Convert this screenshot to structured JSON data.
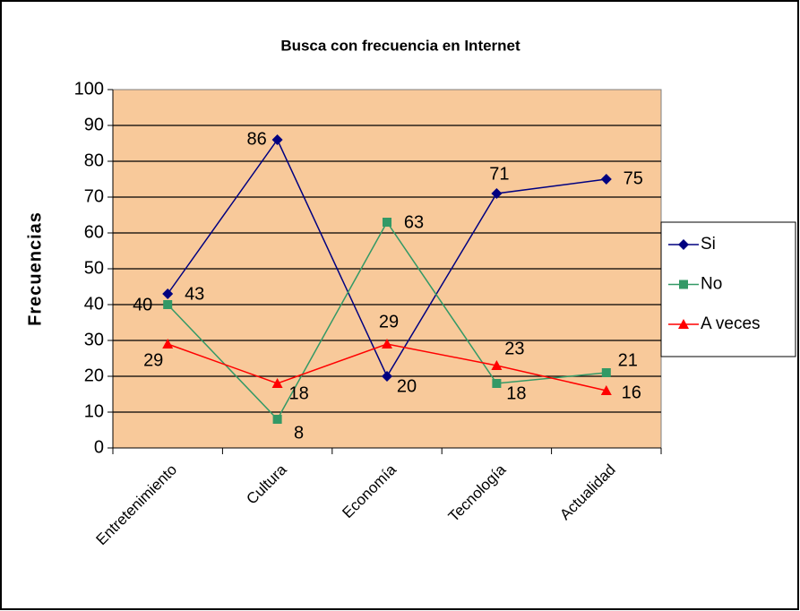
{
  "chart_data": {
    "type": "line",
    "title": "Busca con frecuencia en Internet",
    "y_label": "Frecuencias",
    "categories": [
      "Entretenimiento",
      "Cultura",
      "Economía",
      "Tecnología",
      "Actualidad"
    ],
    "series": [
      {
        "name": "Si",
        "color": "#000080",
        "marker": "diamond",
        "values": [
          43,
          86,
          20,
          71,
          75
        ]
      },
      {
        "name": "No",
        "color": "#339966",
        "marker": "square",
        "values": [
          40,
          8,
          63,
          18,
          21
        ]
      },
      {
        "name": "A veces",
        "color": "#ff0000",
        "marker": "triangle",
        "values": [
          29,
          18,
          29,
          23,
          16
        ]
      }
    ],
    "ylim": [
      0,
      100
    ],
    "yticks": [
      0,
      10,
      20,
      30,
      40,
      50,
      60,
      70,
      80,
      90,
      100
    ],
    "grid": true,
    "legend": "right"
  }
}
